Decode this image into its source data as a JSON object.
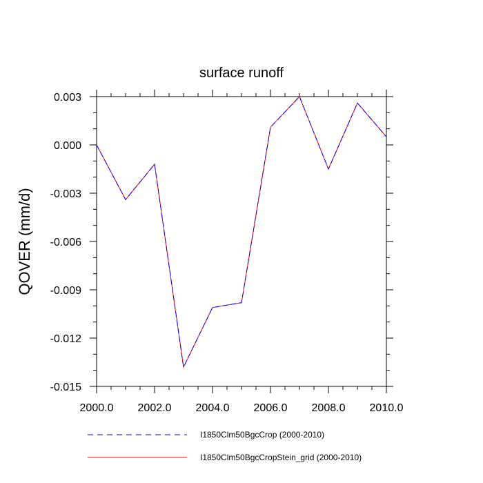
{
  "chart_data": {
    "type": "line",
    "title": "surface runoff",
    "xlabel": "",
    "ylabel": "QOVER  (mm/d)",
    "xlim": [
      2000,
      2010
    ],
    "ylim": [
      -0.015,
      0.003
    ],
    "x_ticks": [
      2000,
      2002,
      2004,
      2006,
      2008,
      2010
    ],
    "x_tick_labels": [
      "2000.0",
      "2002.0",
      "2004.0",
      "2006.0",
      "2008.0",
      "2010.0"
    ],
    "y_ticks": [
      0.003,
      0.0,
      -0.003,
      -0.006,
      -0.009,
      -0.012,
      -0.015
    ],
    "y_tick_labels": [
      "0.003",
      "0.000",
      "-0.003",
      "-0.006",
      "-0.009",
      "-0.012",
      "-0.015"
    ],
    "grid": false,
    "legend_position": "bottom",
    "x": [
      2000,
      2001,
      2002,
      2003,
      2004,
      2005,
      2006,
      2007,
      2008,
      2009,
      2010
    ],
    "series": [
      {
        "name": "I1850Clm50BgcCrop (2000-2010)",
        "color": "#0000ff",
        "style": "dashed",
        "values": [
          0.0,
          -0.0034,
          -0.0012,
          -0.0138,
          -0.0101,
          -0.0098,
          0.0011,
          0.003,
          -0.0015,
          0.0026,
          0.0005
        ]
      },
      {
        "name": "I1850Clm50BgcCropStein_grid (2000-2010)",
        "color": "#ff0000",
        "style": "solid",
        "values": [
          0.0,
          -0.0034,
          -0.0012,
          -0.0138,
          -0.0101,
          -0.0098,
          0.0011,
          0.003,
          -0.0015,
          0.0026,
          0.0005
        ]
      }
    ]
  }
}
